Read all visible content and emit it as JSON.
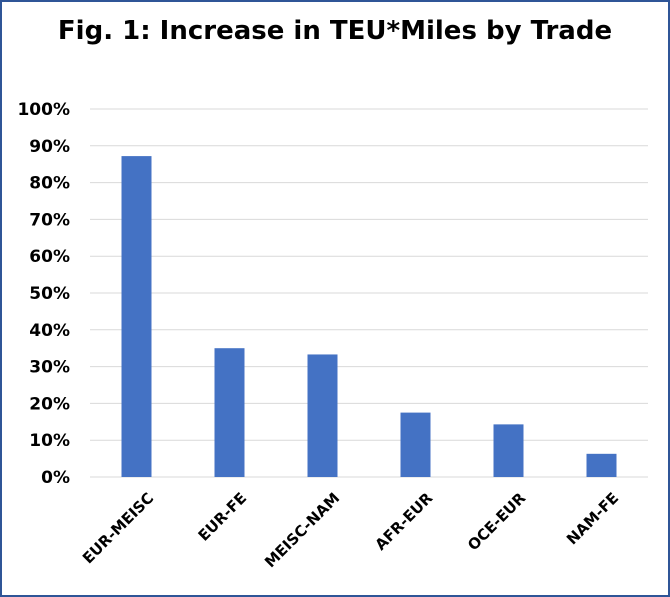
{
  "chart_data": {
    "type": "bar",
    "title": "Fig. 1: Increase in TEU*Miles by Trade",
    "xlabel": "",
    "ylabel": "",
    "categories": [
      "EUR-MEISC",
      "EUR-FE",
      "MEISC-NAM",
      "AFR-EUR",
      "OCE-EUR",
      "NAM-FE"
    ],
    "values": [
      87.2,
      35.0,
      33.3,
      17.5,
      14.3,
      6.3
    ],
    "ylim": [
      0,
      100
    ],
    "yticks": [
      "0%",
      "10%",
      "20%",
      "30%",
      "40%",
      "50%",
      "60%",
      "70%",
      "80%",
      "90%",
      "100%"
    ],
    "grid": true,
    "legend": "none",
    "bar_color": "#4472c4",
    "grid_color": "#d9d9d9",
    "border_color": "#2f5597"
  }
}
